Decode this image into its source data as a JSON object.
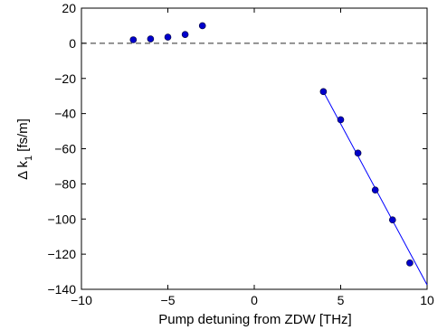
{
  "chart_data": {
    "type": "scatter",
    "xlabel": "Pump detuning from ZDW [THz]",
    "ylabel": "Δ k",
    "ylabel_subscript": "1",
    "ylabel_unit": "[fs/m]",
    "xlim": [
      -10,
      10
    ],
    "ylim": [
      -140,
      20
    ],
    "x_ticks": [
      -10,
      -5,
      0,
      5,
      10
    ],
    "y_ticks": [
      20,
      0,
      -20,
      -40,
      -60,
      -80,
      -100,
      -120,
      -140
    ],
    "x_tick_labels": [
      "−10",
      "−5",
      "0",
      "5",
      "10"
    ],
    "y_tick_labels": [
      "20",
      "0",
      "−20",
      "−40",
      "−60",
      "−80",
      "−100",
      "−120",
      "−140"
    ],
    "grid": false,
    "reference_line": {
      "y": 0,
      "style": "dashed",
      "color": "#555555"
    },
    "marker_color": "#0000cc",
    "line_color": "#0000ff",
    "points": [
      {
        "x": -7,
        "y": 2.0
      },
      {
        "x": -6,
        "y": 2.5
      },
      {
        "x": -5,
        "y": 3.5
      },
      {
        "x": -4,
        "y": 5.0
      },
      {
        "x": -3,
        "y": 10.0
      },
      {
        "x": 4,
        "y": -27.5
      },
      {
        "x": 5,
        "y": -43.5
      },
      {
        "x": 6,
        "y": -62.5
      },
      {
        "x": 7,
        "y": -83.5
      },
      {
        "x": 8,
        "y": -100.5
      },
      {
        "x": 9,
        "y": -125.0
      }
    ],
    "fit_line": {
      "x": [
        4,
        10
      ],
      "y": [
        -27.5,
        -137.5
      ]
    }
  }
}
